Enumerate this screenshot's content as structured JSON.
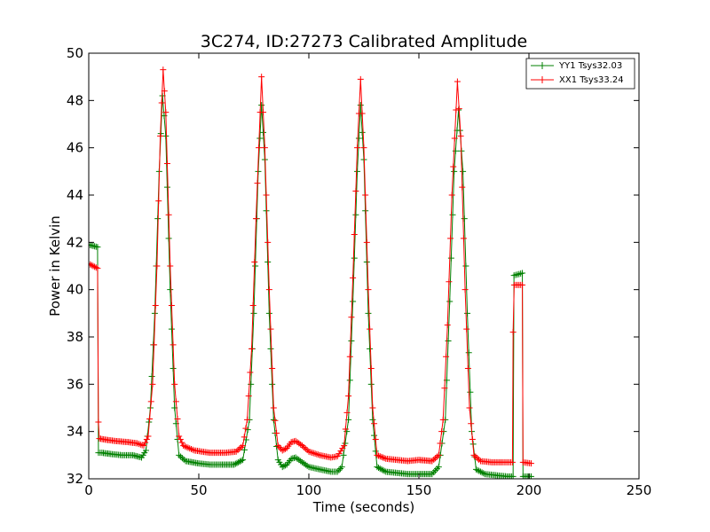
{
  "chart_data": {
    "type": "line",
    "title": "3C274, ID:27273 Calibrated Amplitude",
    "xlabel": "Time (seconds)",
    "ylabel": "Power in Kelvin",
    "xlim": [
      0,
      250
    ],
    "ylim": [
      32,
      50
    ],
    "xticks": [
      "0",
      "50",
      "100",
      "150",
      "200",
      "250"
    ],
    "yticks": [
      "32",
      "34",
      "36",
      "38",
      "40",
      "42",
      "44",
      "46",
      "48",
      "50"
    ],
    "xtick_values": [
      0,
      50,
      100,
      150,
      200,
      250
    ],
    "ytick_values": [
      32,
      34,
      36,
      38,
      40,
      42,
      44,
      46,
      48,
      50
    ],
    "grid": false,
    "legend_position": "top-right",
    "series": [
      {
        "name": "YY1 Tsys32.03",
        "color": "#008000",
        "marker": "+",
        "points": [
          [
            0,
            41.9
          ],
          [
            2,
            41.85
          ],
          [
            4,
            41.8
          ],
          [
            4.4,
            33.1
          ],
          [
            6,
            33.1
          ],
          [
            10,
            33.05
          ],
          [
            15,
            33.0
          ],
          [
            20,
            33.0
          ],
          [
            24,
            32.9
          ],
          [
            26,
            33.2
          ],
          [
            28,
            35.0
          ],
          [
            30,
            39.0
          ],
          [
            32,
            45.0
          ],
          [
            33.5,
            48.2
          ],
          [
            35,
            46.5
          ],
          [
            37,
            40.0
          ],
          [
            39,
            35.0
          ],
          [
            41,
            33.0
          ],
          [
            44,
            32.75
          ],
          [
            50,
            32.65
          ],
          [
            55,
            32.6
          ],
          [
            60,
            32.6
          ],
          [
            66,
            32.6
          ],
          [
            70,
            32.8
          ],
          [
            73,
            34.5
          ],
          [
            75,
            39.0
          ],
          [
            77,
            45.0
          ],
          [
            78.5,
            47.8
          ],
          [
            80,
            45.5
          ],
          [
            82,
            39.0
          ],
          [
            84,
            34.5
          ],
          [
            86,
            32.8
          ],
          [
            88,
            32.5
          ],
          [
            90,
            32.6
          ],
          [
            92,
            32.85
          ],
          [
            94,
            32.9
          ],
          [
            97,
            32.7
          ],
          [
            100,
            32.5
          ],
          [
            105,
            32.4
          ],
          [
            110,
            32.3
          ],
          [
            113,
            32.3
          ],
          [
            115,
            32.5
          ],
          [
            118,
            34.5
          ],
          [
            120,
            39.5
          ],
          [
            122,
            45.0
          ],
          [
            123.5,
            47.8
          ],
          [
            125,
            45.5
          ],
          [
            127,
            39.0
          ],
          [
            129,
            34.5
          ],
          [
            131,
            32.5
          ],
          [
            135,
            32.3
          ],
          [
            140,
            32.25
          ],
          [
            145,
            32.2
          ],
          [
            150,
            32.2
          ],
          [
            156,
            32.2
          ],
          [
            159,
            32.5
          ],
          [
            162,
            34.5
          ],
          [
            164,
            39.5
          ],
          [
            166,
            45.0
          ],
          [
            168,
            47.6
          ],
          [
            170,
            45.0
          ],
          [
            172,
            39.0
          ],
          [
            174,
            34.0
          ],
          [
            176,
            32.4
          ],
          [
            180,
            32.2
          ],
          [
            185,
            32.15
          ],
          [
            190,
            32.1
          ],
          [
            192.8,
            32.1
          ],
          [
            193.2,
            40.6
          ],
          [
            197,
            40.7
          ],
          [
            197.3,
            32.1
          ],
          [
            201,
            32.1
          ]
        ]
      },
      {
        "name": "XX1 Tsys33.24",
        "color": "#ff0000",
        "marker": "+",
        "points": [
          [
            0,
            41.1
          ],
          [
            2,
            41.0
          ],
          [
            4,
            40.9
          ],
          [
            4.4,
            34.4
          ],
          [
            4.8,
            33.7
          ],
          [
            8,
            33.65
          ],
          [
            12,
            33.6
          ],
          [
            18,
            33.55
          ],
          [
            22,
            33.5
          ],
          [
            25,
            33.4
          ],
          [
            27,
            33.8
          ],
          [
            29,
            36.0
          ],
          [
            31,
            41.0
          ],
          [
            32.5,
            46.5
          ],
          [
            33.8,
            49.3
          ],
          [
            35,
            47.5
          ],
          [
            37,
            41.0
          ],
          [
            39,
            36.0
          ],
          [
            41,
            33.8
          ],
          [
            43,
            33.4
          ],
          [
            48,
            33.2
          ],
          [
            55,
            33.1
          ],
          [
            62,
            33.1
          ],
          [
            67,
            33.15
          ],
          [
            70,
            33.4
          ],
          [
            72,
            34.5
          ],
          [
            74,
            37.5
          ],
          [
            76,
            43.0
          ],
          [
            78.5,
            49.0
          ],
          [
            80,
            46.0
          ],
          [
            82,
            40.0
          ],
          [
            84,
            35.0
          ],
          [
            86,
            33.4
          ],
          [
            88,
            33.2
          ],
          [
            90,
            33.3
          ],
          [
            92,
            33.55
          ],
          [
            94,
            33.6
          ],
          [
            97,
            33.4
          ],
          [
            100,
            33.15
          ],
          [
            105,
            33.0
          ],
          [
            110,
            32.9
          ],
          [
            113,
            32.95
          ],
          [
            116,
            33.4
          ],
          [
            118,
            35.5
          ],
          [
            120,
            40.5
          ],
          [
            122,
            46.0
          ],
          [
            123.5,
            48.9
          ],
          [
            125,
            46.0
          ],
          [
            127,
            40.0
          ],
          [
            129,
            35.0
          ],
          [
            131,
            33.0
          ],
          [
            135,
            32.85
          ],
          [
            140,
            32.8
          ],
          [
            145,
            32.75
          ],
          [
            150,
            32.8
          ],
          [
            156,
            32.75
          ],
          [
            159,
            33.0
          ],
          [
            161,
            34.5
          ],
          [
            163,
            38.5
          ],
          [
            165,
            44.0
          ],
          [
            167.5,
            48.8
          ],
          [
            169,
            46.5
          ],
          [
            171,
            40.0
          ],
          [
            173,
            35.0
          ],
          [
            175,
            33.0
          ],
          [
            178,
            32.75
          ],
          [
            183,
            32.7
          ],
          [
            188,
            32.7
          ],
          [
            192.5,
            32.7
          ],
          [
            192.8,
            38.2
          ],
          [
            193.3,
            40.2
          ],
          [
            197,
            40.2
          ],
          [
            197.3,
            32.7
          ],
          [
            201,
            32.65
          ]
        ]
      }
    ]
  }
}
